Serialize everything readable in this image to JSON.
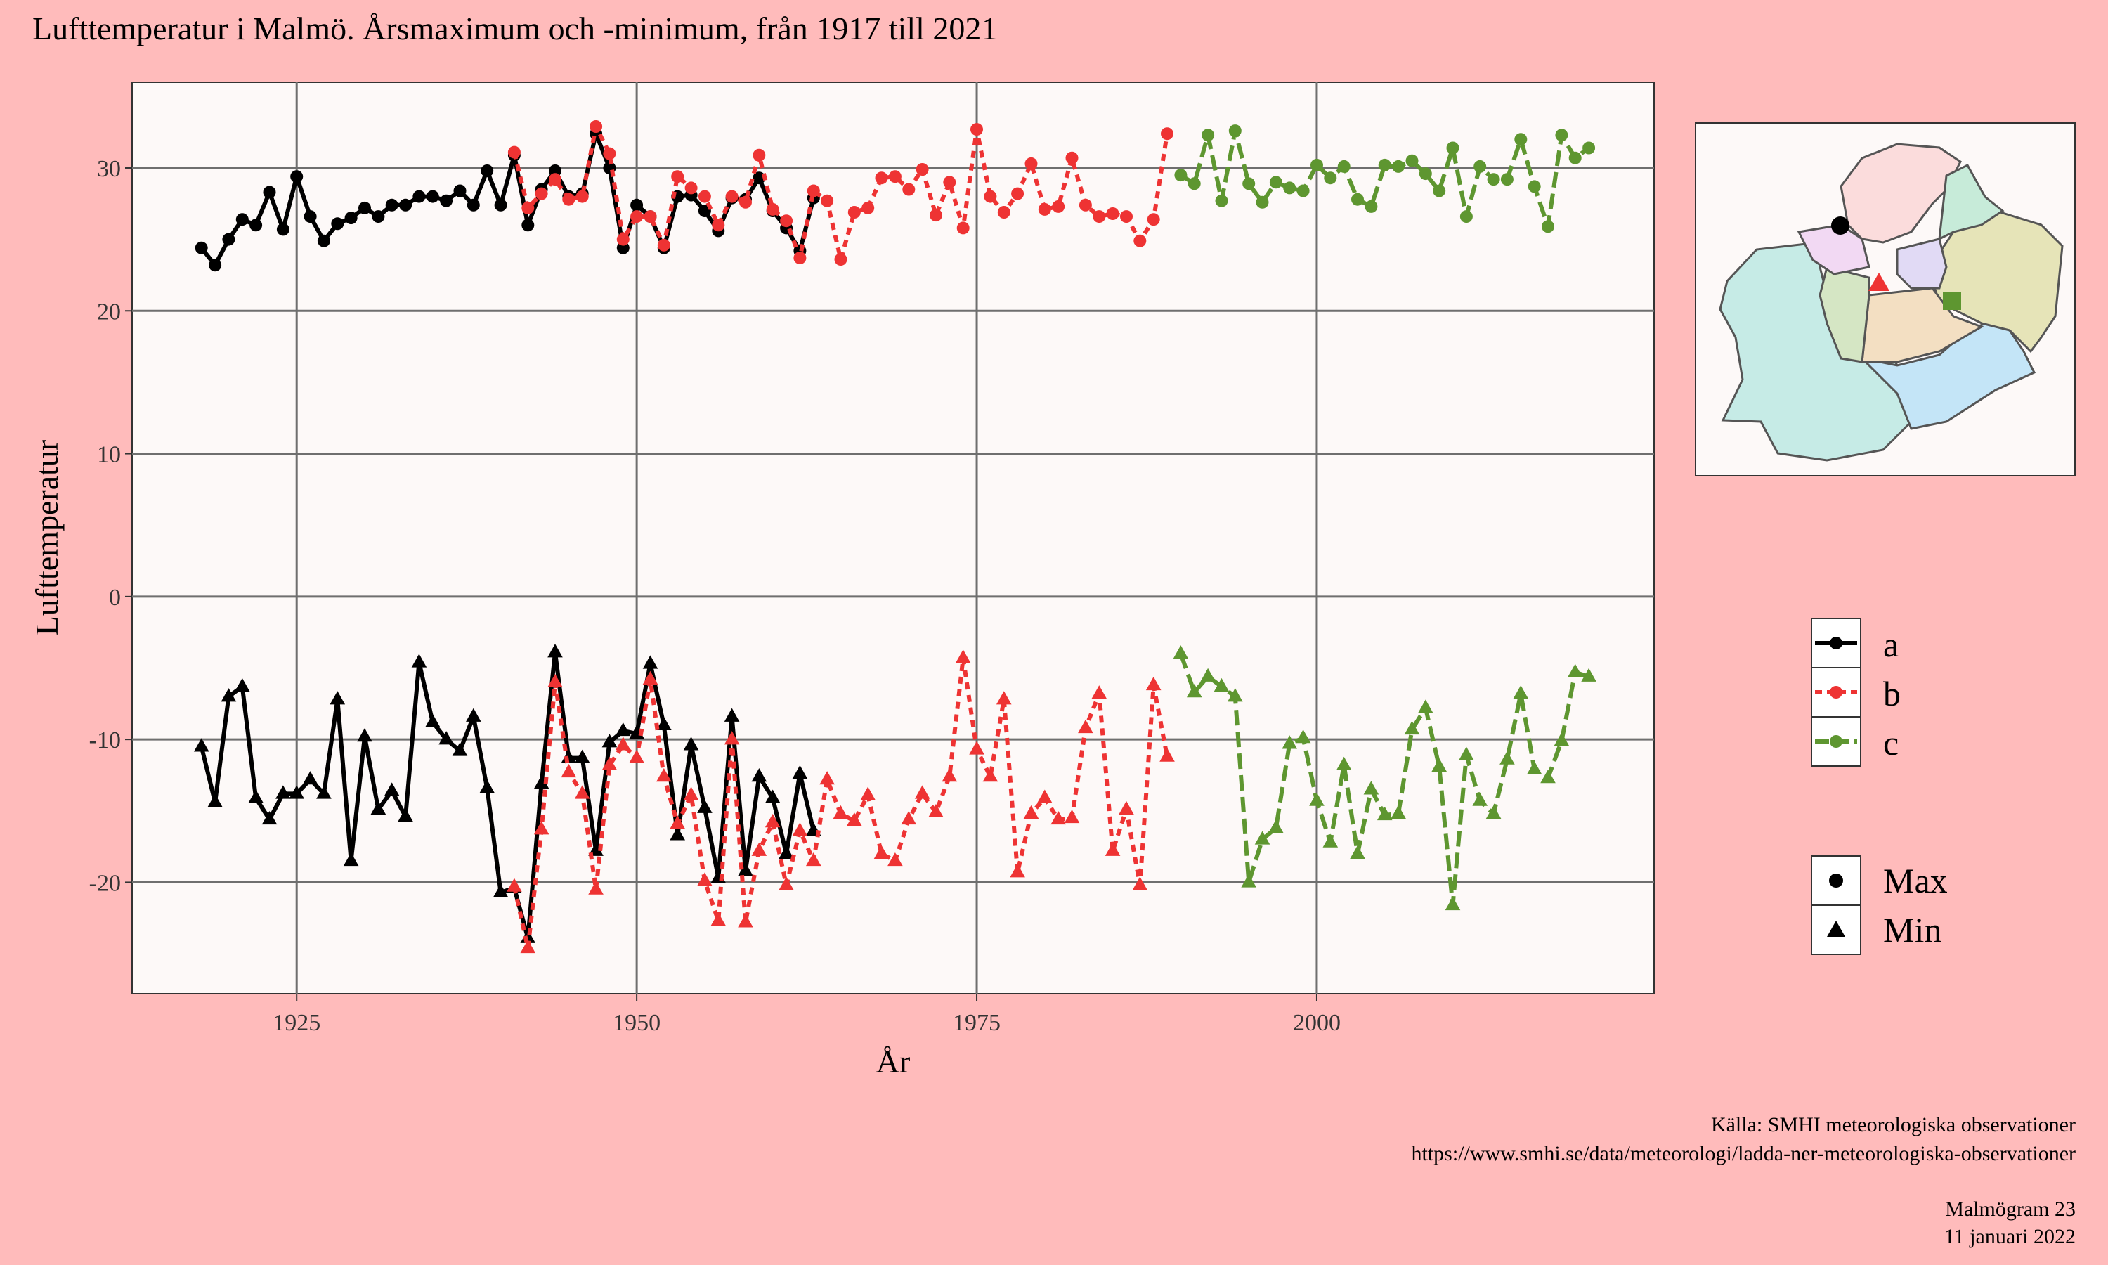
{
  "chart_data": {
    "type": "line",
    "title": "Lufttemperatur i Malmö. Årsmaximum och -minimum, från 1917 till 2021",
    "xlabel": "År",
    "ylabel": "Lufttemperatur",
    "xlim": [
      1912.9,
      2024.8
    ],
    "ylim": [
      -27.8,
      36.0
    ],
    "xticks": [
      1925,
      1950,
      1975,
      2000
    ],
    "yticks": [
      -20,
      -10,
      0,
      10,
      20,
      30
    ],
    "grid": true,
    "legend_station_title": "",
    "legend_stations": [
      "a",
      "b",
      "c"
    ],
    "legend_kinds": [
      "Max",
      "Min"
    ],
    "colors": {
      "a": "#000000",
      "b": "#ee3333",
      "c": "#5e9630"
    },
    "series": [
      {
        "station": "a",
        "kind": "max",
        "x": [
          1918,
          1919,
          1920,
          1921,
          1922,
          1923,
          1924,
          1925,
          1926,
          1927,
          1928,
          1929,
          1930,
          1931,
          1932,
          1933,
          1934,
          1935,
          1936,
          1937,
          1938,
          1939,
          1940,
          1941,
          1942,
          1943,
          1944,
          1945,
          1946,
          1947,
          1948,
          1949,
          1950,
          1951,
          1952,
          1953,
          1954,
          1955,
          1956,
          1957,
          1958,
          1959,
          1960,
          1961,
          1962,
          1963
        ],
        "y": [
          24.4,
          23.2,
          25.0,
          26.4,
          26.0,
          28.3,
          25.7,
          29.4,
          26.6,
          24.9,
          26.1,
          26.5,
          27.2,
          26.6,
          27.4,
          27.4,
          28.0,
          28.0,
          27.7,
          28.4,
          27.4,
          29.8,
          27.4,
          30.9,
          26.0,
          28.5,
          29.8,
          28.0,
          28.2,
          32.4,
          30.0,
          24.4,
          27.4,
          26.6,
          24.4,
          28.0,
          28.1,
          27.0,
          25.6,
          27.9,
          27.8,
          29.3,
          27.0,
          25.8,
          24.2,
          27.9
        ]
      },
      {
        "station": "b",
        "kind": "max",
        "x": [
          1941,
          1942,
          1943,
          1944,
          1945,
          1946,
          1947,
          1948,
          1949,
          1950,
          1951,
          1952,
          1953,
          1954,
          1955,
          1956,
          1957,
          1958,
          1959,
          1960,
          1961,
          1962,
          1963,
          1964,
          1965,
          1966,
          1967,
          1968,
          1969,
          1970,
          1971,
          1972,
          1973,
          1974,
          1975,
          1976,
          1977,
          1978,
          1979,
          1980,
          1981,
          1982,
          1983,
          1984,
          1985,
          1986,
          1987,
          1988,
          1989
        ],
        "y": [
          31.1,
          27.2,
          28.2,
          29.2,
          27.8,
          28.0,
          32.9,
          31.0,
          25.0,
          26.6,
          26.6,
          24.6,
          29.4,
          28.6,
          28.0,
          26.0,
          28.0,
          27.6,
          30.9,
          27.1,
          26.3,
          23.7,
          28.4,
          27.7,
          23.6,
          26.9,
          27.2,
          29.3,
          29.4,
          28.5,
          29.9,
          26.7,
          29.0,
          25.8,
          32.7,
          28.0,
          26.9,
          28.2,
          30.3,
          27.1,
          27.3,
          30.7,
          27.4,
          26.6,
          26.8,
          26.6,
          24.9,
          26.4,
          32.4
        ]
      },
      {
        "station": "c",
        "kind": "max",
        "x": [
          1990,
          1991,
          1992,
          1993,
          1994,
          1995,
          1996,
          1997,
          1998,
          1999,
          2000,
          2001,
          2002,
          2003,
          2004,
          2005,
          2006,
          2007,
          2008,
          2009,
          2010,
          2011,
          2012,
          2013,
          2014,
          2015,
          2016,
          2017,
          2018,
          2019,
          2020
        ],
        "y": [
          29.5,
          28.9,
          32.3,
          27.7,
          32.6,
          28.9,
          27.6,
          29.0,
          28.6,
          28.4,
          30.2,
          29.3,
          30.1,
          27.8,
          27.3,
          30.2,
          30.1,
          30.5,
          29.6,
          28.4,
          31.4,
          26.6,
          30.1,
          29.2,
          29.2,
          32.0,
          28.7,
          25.9,
          32.3,
          30.7,
          31.4
        ]
      },
      {
        "station": "a",
        "kind": "min",
        "x": [
          1918,
          1919,
          1920,
          1921,
          1922,
          1923,
          1924,
          1925,
          1926,
          1927,
          1928,
          1929,
          1930,
          1931,
          1932,
          1933,
          1934,
          1935,
          1936,
          1937,
          1938,
          1939,
          1940,
          1941,
          1942,
          1943,
          1944,
          1945,
          1946,
          1947,
          1948,
          1949,
          1950,
          1951,
          1952,
          1953,
          1954,
          1955,
          1956,
          1957,
          1958,
          1959,
          1960,
          1961,
          1962,
          1963
        ],
        "y": [
          -10.5,
          -14.4,
          -7.0,
          -6.3,
          -14.1,
          -15.6,
          -13.8,
          -13.8,
          -12.8,
          -13.8,
          -7.2,
          -18.5,
          -9.8,
          -14.9,
          -13.6,
          -15.4,
          -4.6,
          -8.8,
          -10.0,
          -10.8,
          -8.4,
          -13.4,
          -20.7,
          -20.4,
          -23.9,
          -13.1,
          -3.9,
          -11.3,
          -11.3,
          -17.8,
          -10.2,
          -9.4,
          -9.6,
          -4.7,
          -9.0,
          -16.7,
          -10.4,
          -14.8,
          -19.7,
          -8.4,
          -19.2,
          -12.6,
          -14.1,
          -18.0,
          -12.4,
          -16.4
        ]
      },
      {
        "station": "b",
        "kind": "min",
        "x": [
          1941,
          1942,
          1943,
          1944,
          1945,
          1946,
          1947,
          1948,
          1949,
          1950,
          1951,
          1952,
          1953,
          1954,
          1955,
          1956,
          1957,
          1958,
          1959,
          1960,
          1961,
          1962,
          1963,
          1964,
          1965,
          1966,
          1967,
          1968,
          1969,
          1970,
          1971,
          1972,
          1973,
          1974,
          1975,
          1976,
          1977,
          1978,
          1979,
          1980,
          1981,
          1982,
          1983,
          1984,
          1985,
          1986,
          1987,
          1988,
          1989
        ],
        "y": [
          -20.3,
          -24.6,
          -16.3,
          -6.0,
          -12.3,
          -13.8,
          -20.5,
          -11.8,
          -10.4,
          -11.3,
          -5.8,
          -12.6,
          -15.9,
          -13.9,
          -19.9,
          -22.7,
          -10.0,
          -22.8,
          -17.8,
          -15.8,
          -20.2,
          -16.4,
          -18.5,
          -12.8,
          -15.2,
          -15.7,
          -13.9,
          -18.0,
          -18.5,
          -15.6,
          -13.8,
          -15.1,
          -12.6,
          -4.3,
          -10.7,
          -12.6,
          -7.2,
          -19.3,
          -15.2,
          -14.1,
          -15.6,
          -15.5,
          -9.2,
          -6.8,
          -17.8,
          -14.9,
          -20.2,
          -6.2,
          -11.2
        ]
      },
      {
        "station": "c",
        "kind": "min",
        "x": [
          1990,
          1991,
          1992,
          1993,
          1994,
          1995,
          1996,
          1997,
          1998,
          1999,
          2000,
          2001,
          2002,
          2003,
          2004,
          2005,
          2006,
          2007,
          2008,
          2009,
          2010,
          2011,
          2012,
          2013,
          2014,
          2015,
          2016,
          2017,
          2018,
          2019,
          2020
        ],
        "y": [
          -4.0,
          -6.7,
          -5.6,
          -6.3,
          -7.0,
          -20.0,
          -17.0,
          -16.2,
          -10.3,
          -9.9,
          -14.3,
          -17.2,
          -11.8,
          -18.0,
          -13.5,
          -15.3,
          -15.2,
          -9.3,
          -7.8,
          -11.9,
          -21.6,
          -11.1,
          -14.3,
          -15.2,
          -11.4,
          -6.8,
          -12.1,
          -12.7,
          -10.1,
          -5.3,
          -5.6
        ]
      }
    ]
  },
  "map_markers": [
    {
      "station": "a",
      "shape": "circle"
    },
    {
      "station": "b",
      "shape": "triangle"
    },
    {
      "station": "c",
      "shape": "square"
    }
  ],
  "caption": {
    "source_line1": "Källa: SMHI meteorologiska observationer",
    "source_line2": "https://www.smhi.se/data/meteorologi/ladda-ner-meteorologiska-observationer",
    "issue": "Malmögram 23",
    "date": "11 januari 2022"
  }
}
